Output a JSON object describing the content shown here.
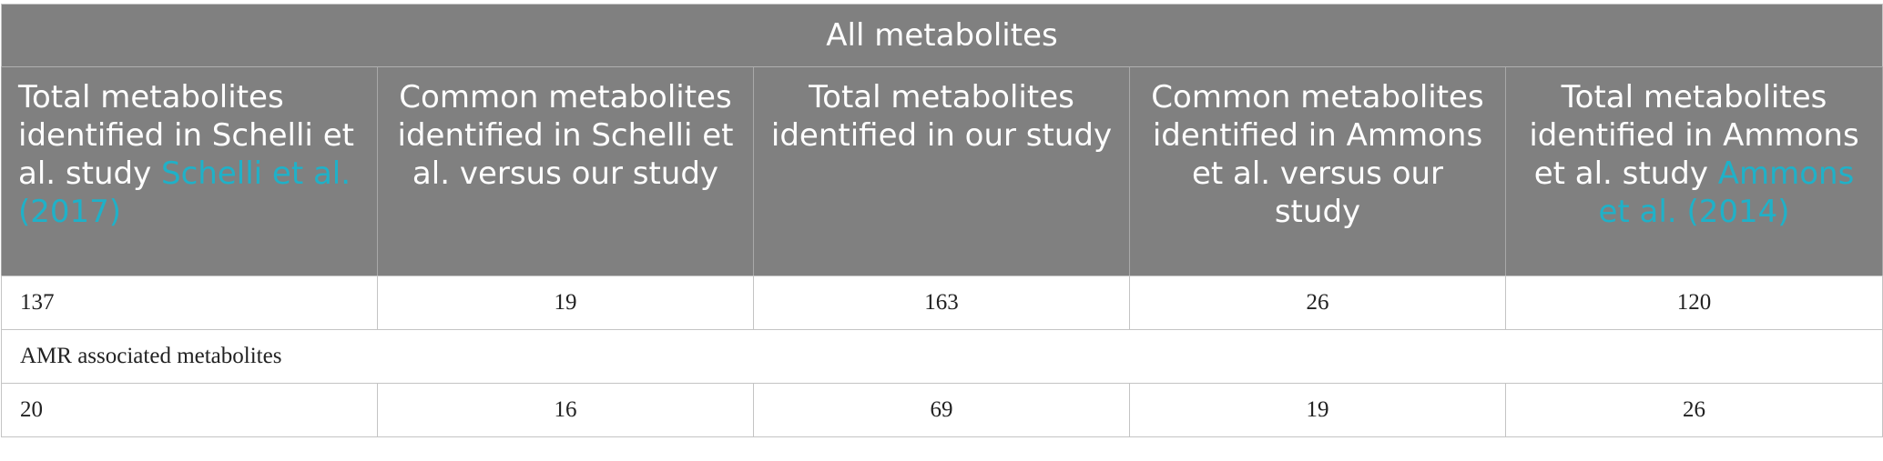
{
  "table": {
    "title": "All metabolites",
    "columns": [
      {
        "text": "Total metabolites identified in Schelli et al. study",
        "cite": "Schelli et al. (2017)"
      },
      {
        "text": "Common metabolites identified in Schelli et al. versus our study",
        "cite": ""
      },
      {
        "text": "Total metabolites identified in our study",
        "cite": ""
      },
      {
        "text": "Common metabolites identified in Ammons et al. versus our study",
        "cite": ""
      },
      {
        "text": "Total metabolites identified in Ammons et al. study",
        "cite": "Ammons et al. (2014)"
      }
    ],
    "rows_all": [
      "137",
      "19",
      "163",
      "26",
      "120"
    ],
    "section_amr": "AMR associated metabolites",
    "rows_amr": [
      "20",
      "16",
      "69",
      "19",
      "26"
    ],
    "colors": {
      "header_bg": "#808080",
      "header_text": "#ffffff",
      "citation_link": "#1fb1c8",
      "border": "#c4c4c4"
    }
  }
}
